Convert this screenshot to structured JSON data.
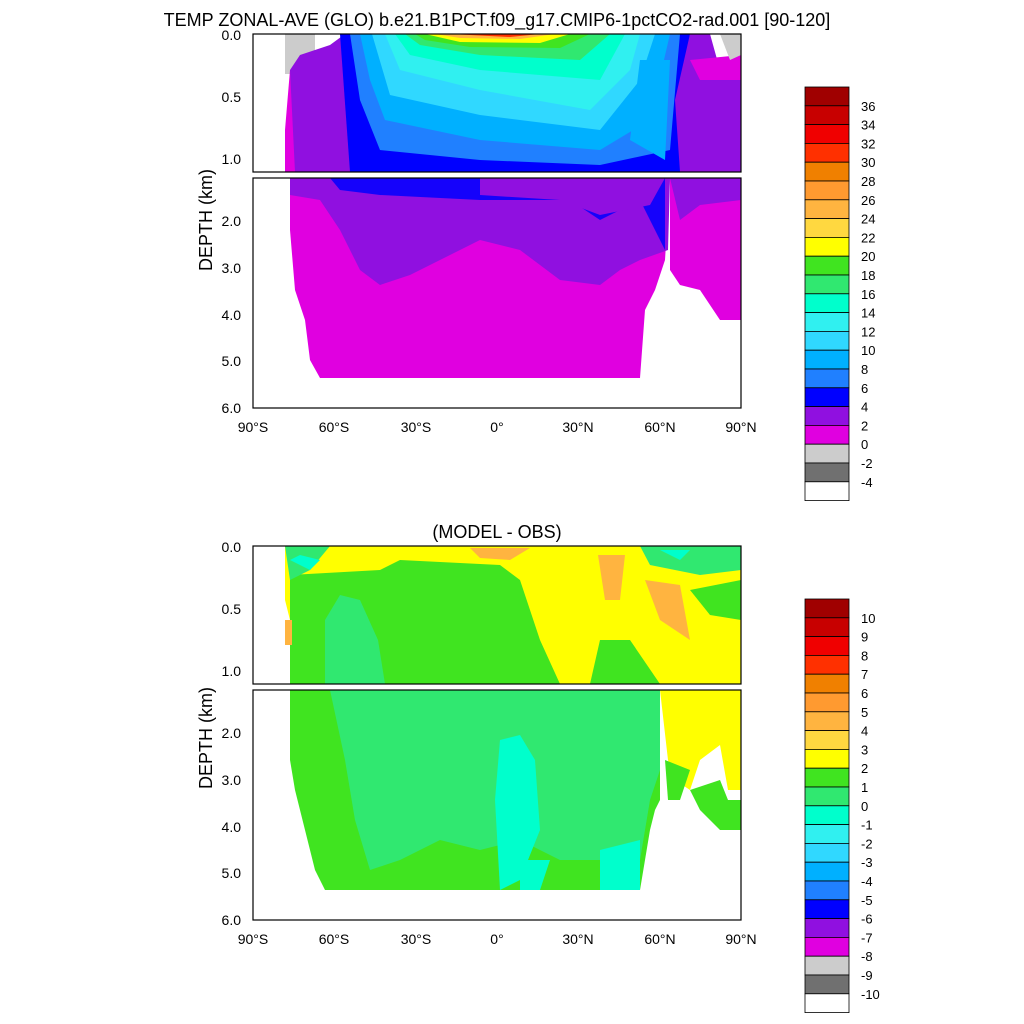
{
  "chart_data": [
    {
      "type": "heatmap",
      "title": "TEMP ZONAL-AVE (GLO) b.e21.B1PCT.f09_g17.CMIP6-1pctCO2-rad.001 [90-120]",
      "xlabel": "",
      "ylabel": "DEPTH (km)",
      "x_ticks": [
        "90°S",
        "60°S",
        "30°S",
        "0°",
        "30°N",
        "60°N",
        "90°N"
      ],
      "y_ticks_upper": [
        "0.0",
        "0.5",
        "1.0"
      ],
      "y_ticks_lower": [
        "2.0",
        "3.0",
        "4.0",
        "5.0",
        "6.0"
      ],
      "xlim": [
        -90,
        90
      ],
      "ylim": [
        0,
        6
      ],
      "colorbar_labels": [
        "36",
        "34",
        "32",
        "30",
        "28",
        "26",
        "24",
        "22",
        "20",
        "18",
        "16",
        "14",
        "12",
        "10",
        "8",
        "6",
        "4",
        "2",
        "0",
        "-2",
        "-4"
      ],
      "colorbar_colors": [
        "#a00000",
        "#c80000",
        "#f00000",
        "#ff3000",
        "#f08000",
        "#ff9a30",
        "#ffb440",
        "#ffd840",
        "#ffff00",
        "#40e420",
        "#30e870",
        "#00ffcc",
        "#30f0f0",
        "#30d8ff",
        "#00b0ff",
        "#2080ff",
        "#0000ff",
        "#9010e0",
        "#e000e0",
        "#cccccc",
        "#707070",
        "#ffffff"
      ]
    },
    {
      "type": "heatmap",
      "title": "(MODEL - OBS)",
      "xlabel": "",
      "ylabel": "DEPTH (km)",
      "x_ticks": [
        "90°S",
        "60°S",
        "30°S",
        "0°",
        "30°N",
        "60°N",
        "90°N"
      ],
      "y_ticks_upper": [
        "0.0",
        "0.5",
        "1.0"
      ],
      "y_ticks_lower": [
        "2.0",
        "3.0",
        "4.0",
        "5.0",
        "6.0"
      ],
      "xlim": [
        -90,
        90
      ],
      "ylim": [
        0,
        6
      ],
      "colorbar_labels": [
        "10",
        "9",
        "8",
        "7",
        "6",
        "5",
        "4",
        "3",
        "2",
        "1",
        "0",
        "-1",
        "-2",
        "-3",
        "-4",
        "-5",
        "-6",
        "-7",
        "-8",
        "-9",
        "-10"
      ],
      "colorbar_colors": [
        "#a00000",
        "#c80000",
        "#f00000",
        "#ff3000",
        "#f08000",
        "#ff9a30",
        "#ffb440",
        "#ffd840",
        "#ffff00",
        "#40e420",
        "#30e870",
        "#00ffcc",
        "#30f0f0",
        "#30d8ff",
        "#00b0ff",
        "#2080ff",
        "#0000ff",
        "#9010e0",
        "#e000e0",
        "#cccccc",
        "#707070",
        "#ffffff"
      ]
    }
  ]
}
